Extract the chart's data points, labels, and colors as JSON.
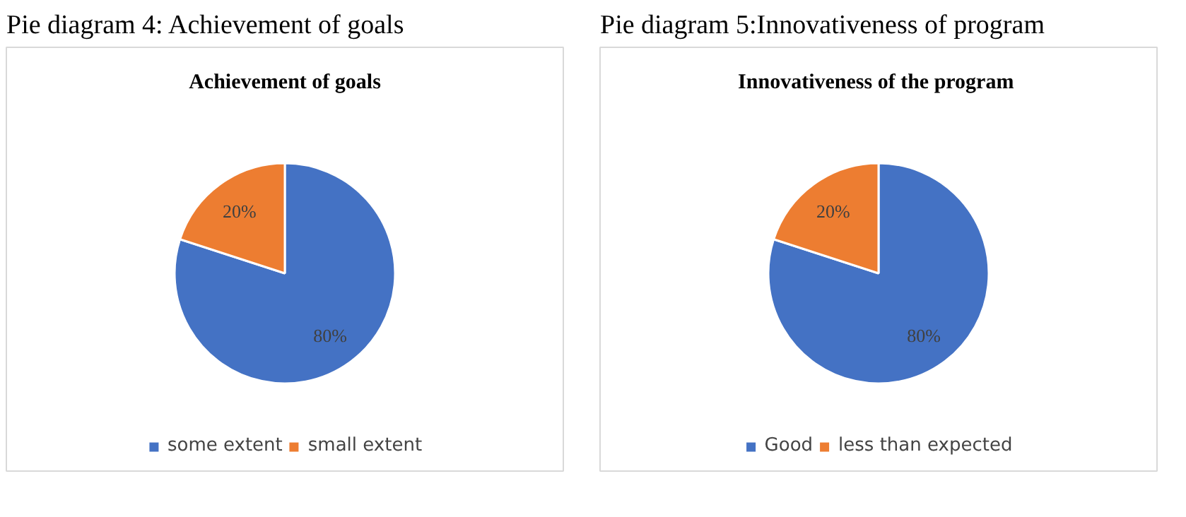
{
  "chart_data": [
    {
      "type": "pie",
      "title": "Achievement of goals",
      "annotations": [
        "Pie diagram 4: Achievement of goals"
      ],
      "categories": [
        "some extent",
        "small extent"
      ],
      "values": [
        80,
        20
      ],
      "colors": [
        "#4472c4",
        "#ed7d31"
      ],
      "value_labels": [
        "80%",
        "20%"
      ],
      "legend": "bottom"
    },
    {
      "type": "pie",
      "title": "Innovativeness of the  program",
      "annotations": [
        "Pie diagram 5:Innovativeness of program"
      ],
      "categories": [
        "Good",
        "less than expected"
      ],
      "values": [
        80,
        20
      ],
      "colors": [
        "#4472c4",
        "#ed7d31"
      ],
      "value_labels": [
        "80%",
        "20%"
      ],
      "legend": "bottom"
    }
  ]
}
